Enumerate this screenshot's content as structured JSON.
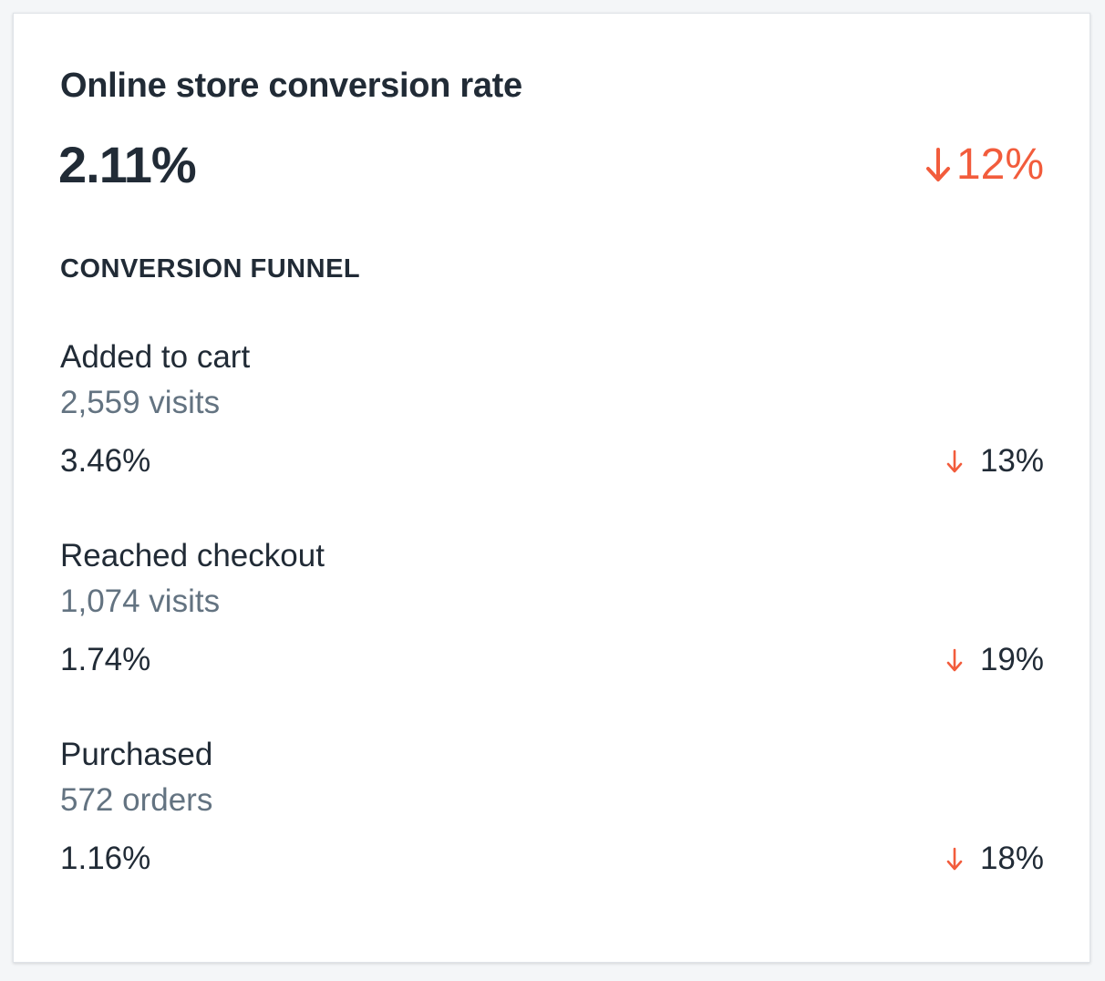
{
  "card": {
    "title": "Online store conversion rate",
    "value": "2.11%",
    "change": "12%",
    "change_icon": "arrow-down-icon",
    "change_color": "#f25c3c"
  },
  "funnel": {
    "heading": "CONVERSION FUNNEL",
    "steps": [
      {
        "label": "Added to cart",
        "count": "2,559 visits",
        "rate": "3.46%",
        "change": "13%",
        "change_icon": "arrow-down-icon"
      },
      {
        "label": "Reached checkout",
        "count": "1,074 visits",
        "rate": "1.74%",
        "change": "19%",
        "change_icon": "arrow-down-icon"
      },
      {
        "label": "Purchased",
        "count": "572 orders",
        "rate": "1.16%",
        "change": "18%",
        "change_icon": "arrow-down-icon"
      }
    ]
  },
  "colors": {
    "text_primary": "#212b36",
    "text_subdued": "#637381",
    "negative": "#f25c3c",
    "page_background": "#f4f6f8"
  }
}
